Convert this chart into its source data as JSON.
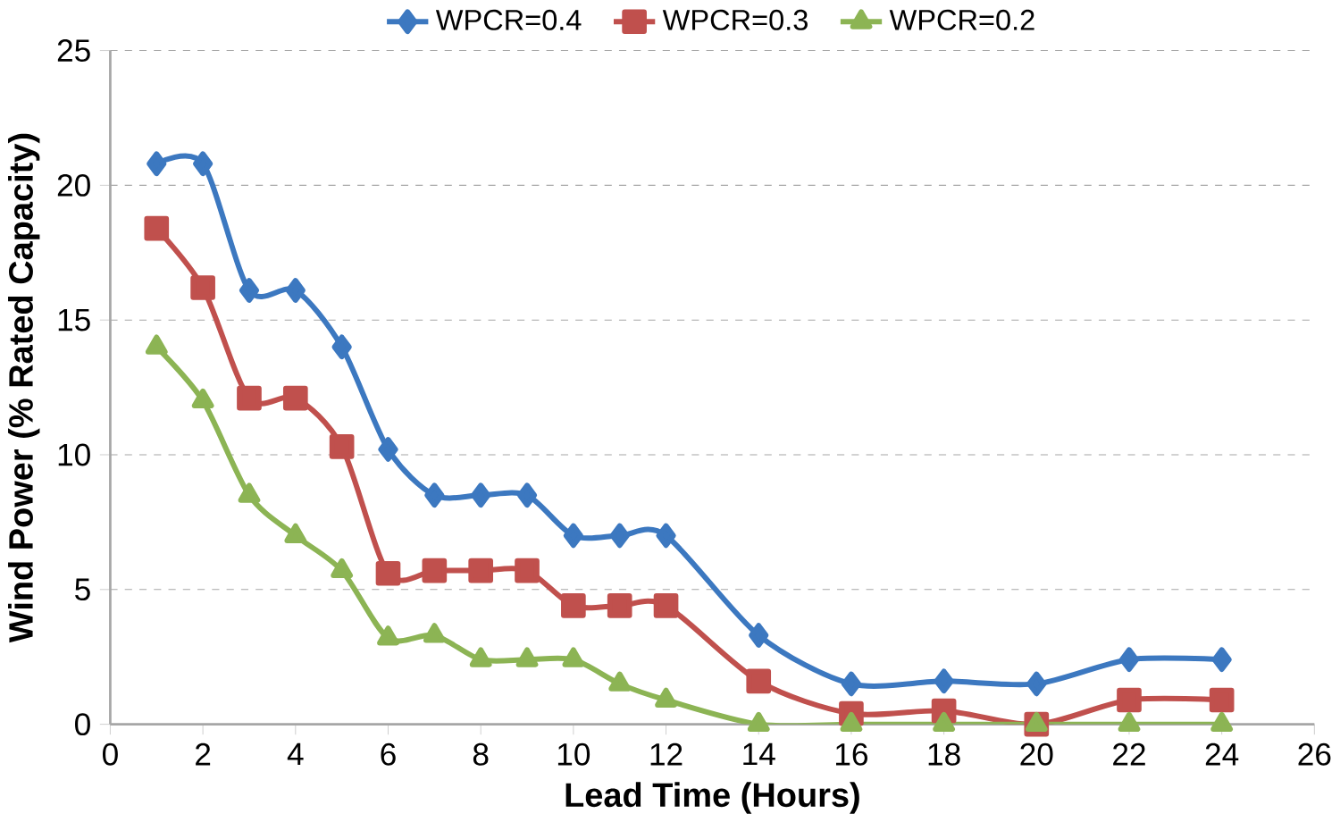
{
  "chart_data": {
    "type": "line",
    "xlabel": "Lead Time (Hours)",
    "ylabel": "Wind Power (% Rated Capacity)",
    "x": [
      1,
      2,
      3,
      4,
      5,
      6,
      7,
      8,
      9,
      10,
      11,
      12,
      14,
      16,
      18,
      20,
      22,
      24
    ],
    "series": [
      {
        "name": "WPCR=0.4",
        "color": "#3c78c0",
        "marker": "diamond",
        "values": [
          20.8,
          20.8,
          16.1,
          16.1,
          14.0,
          10.2,
          8.5,
          8.5,
          8.5,
          7.0,
          7.0,
          7.0,
          3.3,
          1.5,
          1.6,
          1.5,
          2.4,
          2.4
        ]
      },
      {
        "name": "WPCR=0.3",
        "color": "#c0504d",
        "marker": "square",
        "values": [
          18.4,
          16.2,
          12.1,
          12.1,
          10.3,
          5.6,
          5.7,
          5.7,
          5.7,
          4.4,
          4.4,
          4.4,
          1.6,
          0.4,
          0.5,
          0.0,
          0.9,
          0.9
        ]
      },
      {
        "name": "WPCR=0.2",
        "color": "#8cb454",
        "marker": "triangle",
        "values": [
          14.0,
          12.0,
          8.5,
          7.0,
          5.7,
          3.2,
          3.3,
          2.4,
          2.4,
          2.4,
          1.5,
          0.9,
          0.0,
          0.0,
          0.0,
          0.0,
          0.0,
          0.0
        ]
      }
    ],
    "xlim": [
      0,
      26
    ],
    "xticks": [
      0,
      2,
      4,
      6,
      8,
      10,
      12,
      14,
      16,
      18,
      20,
      22,
      24,
      26
    ],
    "ylim": [
      0,
      25
    ],
    "yticks": [
      0,
      5,
      10,
      15,
      20,
      25
    ],
    "grid": "y",
    "legend": "top",
    "line_style": "solid"
  }
}
